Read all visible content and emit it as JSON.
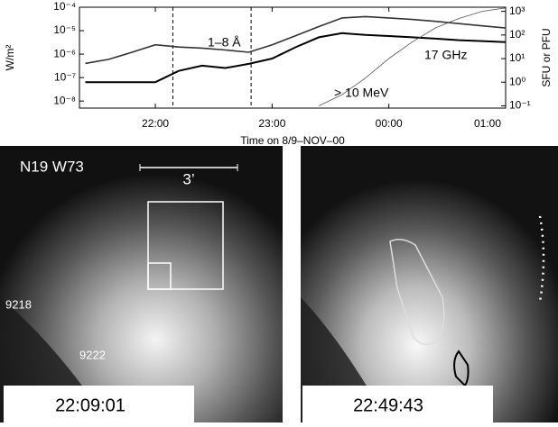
{
  "chart_data": {
    "type": "line",
    "xlabel": "Time on 8/9–NOV–00",
    "ylabel": "W/m²",
    "y2label": "SFU or PFU",
    "log_y": true,
    "log_y2": true,
    "x": [
      21.4,
      21.6,
      21.8,
      22.0,
      22.2,
      22.4,
      22.6,
      22.8,
      23.0,
      23.2,
      23.4,
      23.6,
      23.8,
      24.0,
      24.2,
      24.4,
      24.6,
      24.8,
      25.0
    ],
    "xlim": [
      21.35,
      25.0
    ],
    "xticks": [
      {
        "value": 22,
        "label": "22:00"
      },
      {
        "value": 23,
        "label": "23:00"
      },
      {
        "value": 24,
        "label": "00:00"
      },
      {
        "value": 25,
        "label": "01:00"
      }
    ],
    "ylim": [
      5e-09,
      0.0001
    ],
    "yticks": [
      {
        "value": 1e-08,
        "label": "10⁻⁸"
      },
      {
        "value": 1e-07,
        "label": "10⁻⁷"
      },
      {
        "value": 1e-06,
        "label": "10⁻⁶"
      },
      {
        "value": 1e-05,
        "label": "10⁻⁵"
      },
      {
        "value": 0.0001,
        "label": "10⁻⁴"
      }
    ],
    "y2lim": [
      0.08,
      1500
    ],
    "y2ticks": [
      {
        "value": 0.1,
        "label": "10⁻¹"
      },
      {
        "value": 1,
        "label": "10⁰"
      },
      {
        "value": 10,
        "label": "10¹"
      },
      {
        "value": 100,
        "label": "10²"
      },
      {
        "value": 1000,
        "label": "10³"
      }
    ],
    "vlines": [
      22.15,
      22.82
    ],
    "series": [
      {
        "name": "1–8 Å",
        "color": "#333333",
        "axis": "y",
        "values": [
          4e-07,
          6e-07,
          1.2e-06,
          2.5e-06,
          2e-06,
          1.8e-06,
          1.5e-06,
          1.2e-06,
          2.5e-06,
          6e-06,
          1.5e-05,
          3.5e-05,
          4e-05,
          3.5e-05,
          3e-05,
          2.5e-05,
          2e-05,
          1.6e-05,
          1.3e-05
        ]
      },
      {
        "name": "17 GHz",
        "color": "#000000",
        "axis": "y2",
        "values": [
          1,
          1,
          1,
          1,
          3,
          5,
          4,
          6,
          10,
          30,
          80,
          120,
          100,
          90,
          80,
          70,
          60,
          55,
          50
        ]
      },
      {
        "name": "> 10 MeV",
        "color": "#555555",
        "axis": "y2",
        "values": [
          null,
          null,
          null,
          null,
          null,
          null,
          null,
          null,
          null,
          null,
          0.1,
          0.3,
          1.5,
          10,
          50,
          200,
          500,
          1000,
          1400
        ]
      }
    ]
  },
  "panels": [
    {
      "location": "N19 W73",
      "scale": "3’",
      "regions": [
        "9218",
        "9222"
      ],
      "time": "22:09:01"
    },
    {
      "time": "22:49:43"
    }
  ]
}
